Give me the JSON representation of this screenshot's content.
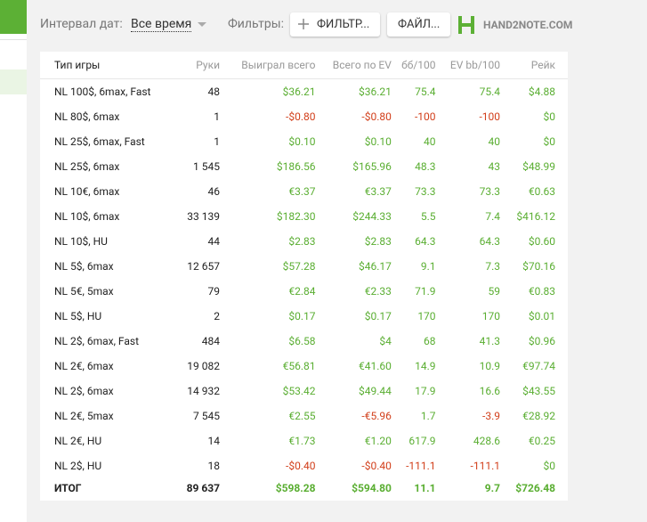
{
  "header": {
    "interval_label": "Интервал дат:",
    "interval_value": "Все время",
    "filters_label": "Фильтры:",
    "filter_button": "ФИЛЬТР...",
    "file_button": "ФАЙЛ...",
    "logo_text": "HAND2NOTE.COM"
  },
  "table": {
    "columns": [
      "Тип игры",
      "Руки",
      "Выиграл всего",
      "Всего по EV",
      "бб/100",
      "EV bb/100",
      "Рейк"
    ],
    "rows": [
      [
        "NL 100$, 6max, Fast",
        "48",
        "$36.21",
        "$36.21",
        "75.4",
        "75.4",
        "$4.88"
      ],
      [
        "NL 80$, 6max",
        "1",
        "-$0.80",
        "-$0.80",
        "-100",
        "-100",
        "$0"
      ],
      [
        "NL 25$, 6max, Fast",
        "1",
        "$0.10",
        "$0.10",
        "40",
        "40",
        "$0"
      ],
      [
        "NL 25$, 6max",
        "1 545",
        "$186.56",
        "$165.96",
        "48.3",
        "43",
        "$48.99"
      ],
      [
        "NL 10€, 6max",
        "46",
        "€3.37",
        "€3.37",
        "73.3",
        "73.3",
        "€0.63"
      ],
      [
        "NL 10$, 6max",
        "33 139",
        "$182.30",
        "$244.33",
        "5.5",
        "7.4",
        "$416.12"
      ],
      [
        "NL 10$, HU",
        "44",
        "$2.83",
        "$2.83",
        "64.3",
        "64.3",
        "$0.60"
      ],
      [
        "NL 5$, 6max",
        "12 657",
        "$57.28",
        "$46.17",
        "9.1",
        "7.3",
        "$70.16"
      ],
      [
        "NL 5€, 5max",
        "79",
        "€2.84",
        "€2.33",
        "71.9",
        "59",
        "€0.83"
      ],
      [
        "NL 5$, HU",
        "2",
        "$0.17",
        "$0.17",
        "170",
        "170",
        "$0.01"
      ],
      [
        "NL 2$, 6max, Fast",
        "484",
        "$6.58",
        "$4",
        "68",
        "41.3",
        "$0.96"
      ],
      [
        "NL 2€, 6max",
        "19 082",
        "€56.81",
        "€41.60",
        "14.9",
        "10.9",
        "€97.74"
      ],
      [
        "NL 2$, 6max",
        "14 932",
        "$53.42",
        "$49.44",
        "17.9",
        "16.6",
        "$43.55"
      ],
      [
        "NL 2€, 5max",
        "7 545",
        "€2.55",
        "-€5.96",
        "1.7",
        "-3.9",
        "€28.92"
      ],
      [
        "NL 2€, HU",
        "14",
        "€1.73",
        "€1.20",
        "617.9",
        "428.6",
        "€0.25"
      ],
      [
        "NL 2$, HU",
        "18",
        "-$0.40",
        "-$0.40",
        "-111.1",
        "-111.1",
        "$0"
      ]
    ],
    "total": [
      "ИТОГ",
      "89 637",
      "$598.28",
      "$594.80",
      "11.1",
      "9.7",
      "$726.48"
    ]
  }
}
